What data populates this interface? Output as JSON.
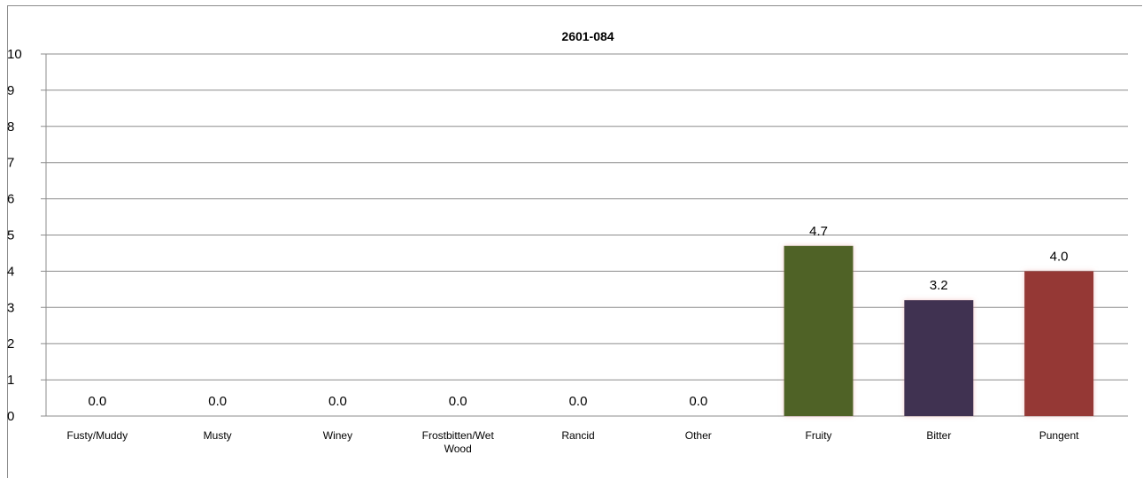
{
  "chart_data": {
    "type": "bar",
    "title": "2601-084",
    "xlabel": "",
    "ylabel": "",
    "ylim": [
      0,
      10
    ],
    "yticks": [
      0,
      1,
      2,
      3,
      4,
      5,
      6,
      7,
      8,
      9,
      10
    ],
    "grid": true,
    "categories": [
      "Fusty/Muddy",
      "Musty",
      "Winey",
      "Frostbitten/Wet Wood",
      "Rancid",
      "Other",
      "Fruity",
      "Bitter",
      "Pungent"
    ],
    "values": [
      0.0,
      0.0,
      0.0,
      0.0,
      0.0,
      0.0,
      4.7,
      3.2,
      4.0
    ],
    "data_labels": [
      "0.0",
      "0.0",
      "0.0",
      "0.0",
      "0.0",
      "0.0",
      "4.7",
      "3.2",
      "4.0"
    ],
    "colors": [
      "#4f81bd",
      "#4f81bd",
      "#4f81bd",
      "#4f81bd",
      "#4f81bd",
      "#4f81bd",
      "#4f6228",
      "#403151",
      "#953735"
    ]
  }
}
